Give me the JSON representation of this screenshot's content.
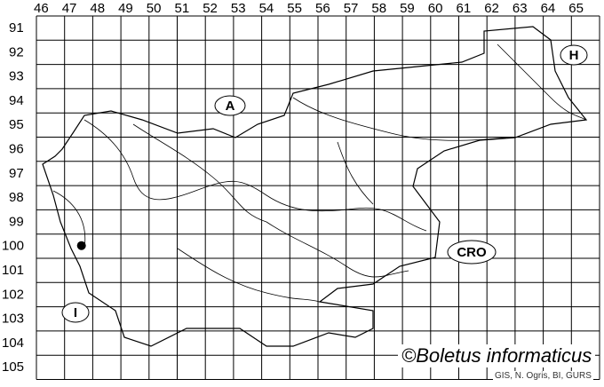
{
  "map": {
    "columns": [
      "46",
      "47",
      "48",
      "49",
      "50",
      "51",
      "52",
      "53",
      "54",
      "55",
      "56",
      "57",
      "58",
      "59",
      "60",
      "61",
      "62",
      "63",
      "64",
      "65"
    ],
    "rows": [
      "91",
      "92",
      "93",
      "94",
      "95",
      "96",
      "97",
      "98",
      "99",
      "100",
      "101",
      "102",
      "103",
      "104",
      "105"
    ],
    "country_markers": [
      {
        "label": "A"
      },
      {
        "label": "H"
      },
      {
        "label": "CRO"
      },
      {
        "label": "I"
      }
    ],
    "occurrence_points": [
      {
        "column": "47",
        "row": "100"
      }
    ],
    "credit": "©Boletus informaticus",
    "source": "GIS, N. Ogris, BI, GURS"
  }
}
